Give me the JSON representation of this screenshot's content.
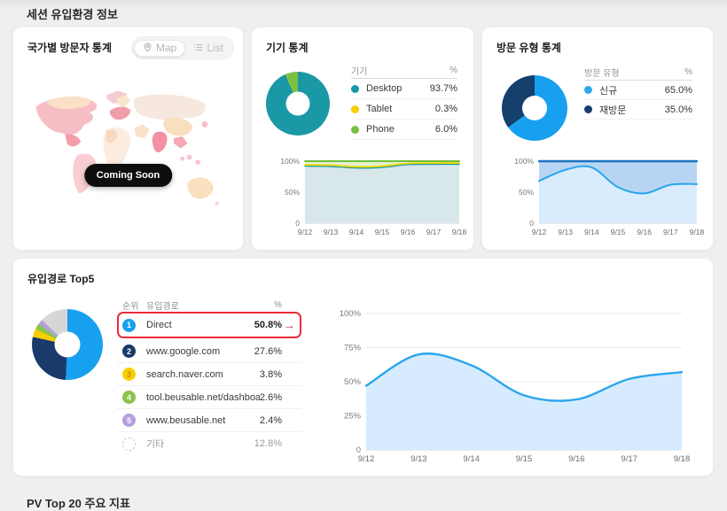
{
  "page": {
    "section_title": "세션 유입환경 정보",
    "footer_section_title": "PV Top 20 주요 지표"
  },
  "country_card": {
    "title": "국가별 방문자 통계",
    "map_label": "Map",
    "list_label": "List",
    "coming_soon": "Coming Soon"
  },
  "device_card": {
    "title": "기기 통계",
    "table": {
      "col_device": "기기",
      "col_pct": "%",
      "rows": [
        {
          "label": "Desktop",
          "value": "93.7%",
          "color": "#1a98a6"
        },
        {
          "label": "Tablet",
          "value": "0.3%",
          "color": "#f5d000"
        },
        {
          "label": "Phone",
          "value": "6.0%",
          "color": "#79c140"
        }
      ]
    },
    "donut": {
      "type": "pie",
      "slices": [
        {
          "label": "Desktop",
          "value": 93.7,
          "color": "#1a98a6"
        },
        {
          "label": "Tablet",
          "value": 0.3,
          "color": "#f5d000"
        },
        {
          "label": "Phone",
          "value": 6.0,
          "color": "#79c140"
        }
      ]
    },
    "trend": {
      "type": "area",
      "x": [
        "9/12",
        "9/13",
        "9/14",
        "9/15",
        "9/16",
        "9/17",
        "9/18"
      ],
      "ylim": [
        0,
        100
      ],
      "yticks": [
        {
          "v": 100,
          "label": "100%"
        },
        {
          "v": 50,
          "label": "50%"
        },
        {
          "v": 0,
          "label": "0"
        }
      ],
      "series": [
        {
          "name": "Desktop",
          "values": [
            92,
            91.5,
            89,
            90,
            94.5,
            95,
            95
          ],
          "line": "#1a98a6",
          "lw": 1.4,
          "fill": "#d8e7ea",
          "base": "zero"
        },
        {
          "name": "Tablet",
          "values": [
            94,
            93.5,
            91,
            92,
            96.5,
            97,
            97
          ],
          "line": "#eed900",
          "lw": 1.8,
          "fill": "none",
          "base": "none"
        },
        {
          "name": "Phone",
          "values": [
            100,
            100,
            100,
            100,
            100,
            100,
            100
          ],
          "line": "#6fbe3a",
          "lw": 2,
          "fill": "#e4f1d0",
          "base": "prev"
        }
      ]
    }
  },
  "visit_card": {
    "title": "방문 유형 통계",
    "table": {
      "col_type": "방문 유형",
      "col_pct": "%",
      "rows": [
        {
          "label": "신규",
          "value": "65.0%",
          "color": "#29a9ec"
        },
        {
          "label": "재방문",
          "value": "35.0%",
          "color": "#153f6c"
        }
      ]
    },
    "donut": {
      "type": "pie",
      "slices": [
        {
          "label": "신규",
          "value": 65.0,
          "color": "#18a0f0"
        },
        {
          "label": "재방문",
          "value": 35.0,
          "color": "#153f6c"
        }
      ]
    },
    "trend": {
      "type": "area",
      "x": [
        "9/12",
        "9/13",
        "9/14",
        "9/15",
        "9/16",
        "9/17",
        "9/18"
      ],
      "ylim": [
        0,
        100
      ],
      "yticks": [
        {
          "v": 100,
          "label": "100%"
        },
        {
          "v": 50,
          "label": "50%"
        },
        {
          "v": 0,
          "label": "0"
        }
      ],
      "series": [
        {
          "name": "신규",
          "values": [
            68,
            86,
            90,
            58,
            48,
            62,
            63
          ],
          "line": "#2aa5ec",
          "lw": 2,
          "fill": "#d9ecfd",
          "base": "zero"
        },
        {
          "name": "재방문",
          "values": [
            100,
            100,
            100,
            100,
            100,
            100,
            100
          ],
          "line": "#1d72c0",
          "lw": 2.4,
          "fill": "#b7d5f2",
          "base": "prev"
        }
      ]
    }
  },
  "inflow_card": {
    "title": "유입경로 Top5",
    "table": {
      "col_rank": "순위",
      "col_path": "유입경로",
      "col_pct": "%",
      "rows": [
        {
          "rank": "1",
          "label": "Direct",
          "value": "50.8%",
          "badge_color": "#18a0f0",
          "arrow": "→",
          "highlighted": true
        },
        {
          "rank": "2",
          "label": "www.google.com",
          "value": "27.6%",
          "badge_color": "#1a3a6b"
        },
        {
          "rank": "3",
          "label": "search.naver.com",
          "value": "3.8%",
          "badge_color": "#f6cf00",
          "badge_text_color": "#c8860a"
        },
        {
          "rank": "4",
          "label": "tool.beusable.net/dashboard",
          "value": "2.6%",
          "badge_color": "#8bc34a"
        },
        {
          "rank": "5",
          "label": "www.beusable.net",
          "value": "2.4%",
          "badge_color": "#b2a0dd"
        },
        {
          "rank": "",
          "label": "기타",
          "value": "12.8%",
          "badge_color": "dashed"
        }
      ]
    },
    "donut": {
      "type": "pie",
      "slices": [
        {
          "label": "Direct",
          "value": 50.8,
          "color": "#18a0f0"
        },
        {
          "label": "www.google.com",
          "value": 27.6,
          "color": "#1a3a6b"
        },
        {
          "label": "search.naver.com",
          "value": 3.8,
          "color": "#f6cf00"
        },
        {
          "label": "tool.beusable.net/dashboard",
          "value": 2.6,
          "color": "#8bc34a"
        },
        {
          "label": "www.beusable.net",
          "value": 2.4,
          "color": "#b2a0dd"
        },
        {
          "label": "기타",
          "value": 12.8,
          "color": "#d6d6d6"
        }
      ]
    },
    "trend": {
      "type": "area",
      "x": [
        "9/12",
        "9/13",
        "9/14",
        "9/15",
        "9/16",
        "9/17",
        "9/18"
      ],
      "ylim": [
        0,
        100
      ],
      "yticks": [
        {
          "v": 100,
          "label": "100%"
        },
        {
          "v": 75,
          "label": "75%"
        },
        {
          "v": 50,
          "label": "50%"
        },
        {
          "v": 25,
          "label": "25%"
        },
        {
          "v": 0,
          "label": "0"
        }
      ],
      "series": [
        {
          "name": "유입경로",
          "values": [
            47,
            70,
            62,
            40,
            37,
            52,
            57
          ],
          "line": "#2aa5ec",
          "lw": 2.4,
          "fill": "#d6ecfe",
          "base": "zero"
        }
      ]
    }
  },
  "colors": {
    "highlight_red": "#ee2b3c",
    "arrow_pink": "#d6246e",
    "teal": "#1a98a6",
    "blue": "#18a0f0",
    "navy": "#1a3a6b"
  }
}
